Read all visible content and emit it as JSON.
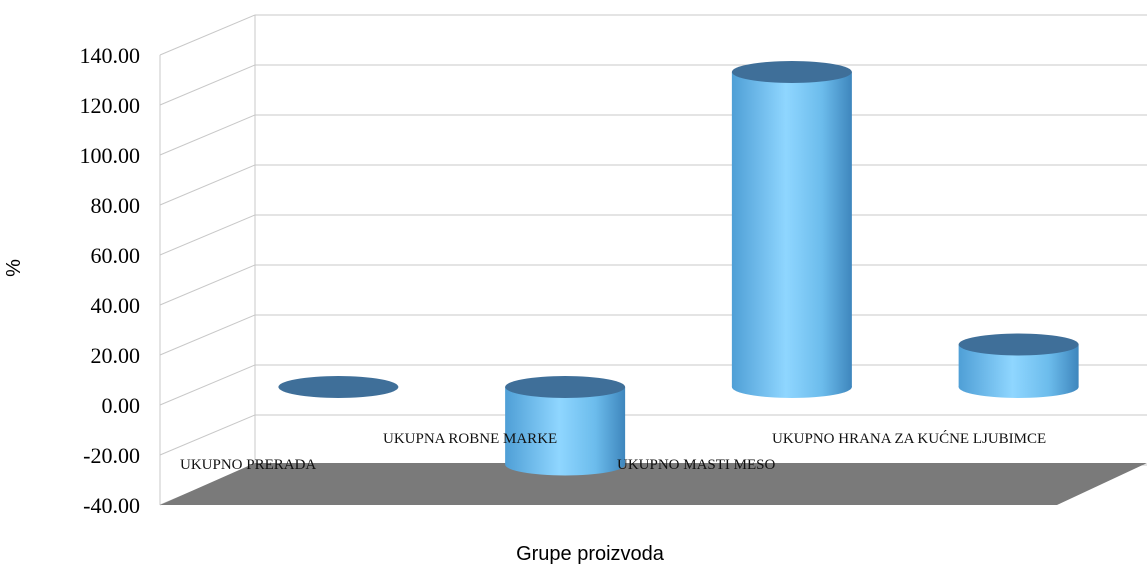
{
  "chart_data": {
    "type": "bar",
    "style": "3d-cylinder",
    "categories": [
      "UKUPNO PRERADA",
      "UKUPNA ROBNE MARKE",
      "UKUPNO MASTI MESO",
      "UKUPNO HRANA ZA KUĆNE LJUBIMCE"
    ],
    "values": [
      0.0,
      -31.0,
      126.0,
      17.0
    ],
    "yticks": [
      "140.00",
      "120.00",
      "100.00",
      "80.00",
      "60.00",
      "40.00",
      "20.00",
      "0.00",
      "-20.00",
      "-40.00"
    ],
    "ylim": [
      -40,
      140
    ],
    "xlabel": "Grupe proizvoda",
    "ylabel": "%",
    "grid": true,
    "legend": "none",
    "colors": {
      "bar": "#7cc8f4",
      "bar_dark": "#3a7fb0",
      "top": "#3f6f99",
      "floor": "#7a7a7a",
      "grid": "#c8c8c8"
    }
  }
}
